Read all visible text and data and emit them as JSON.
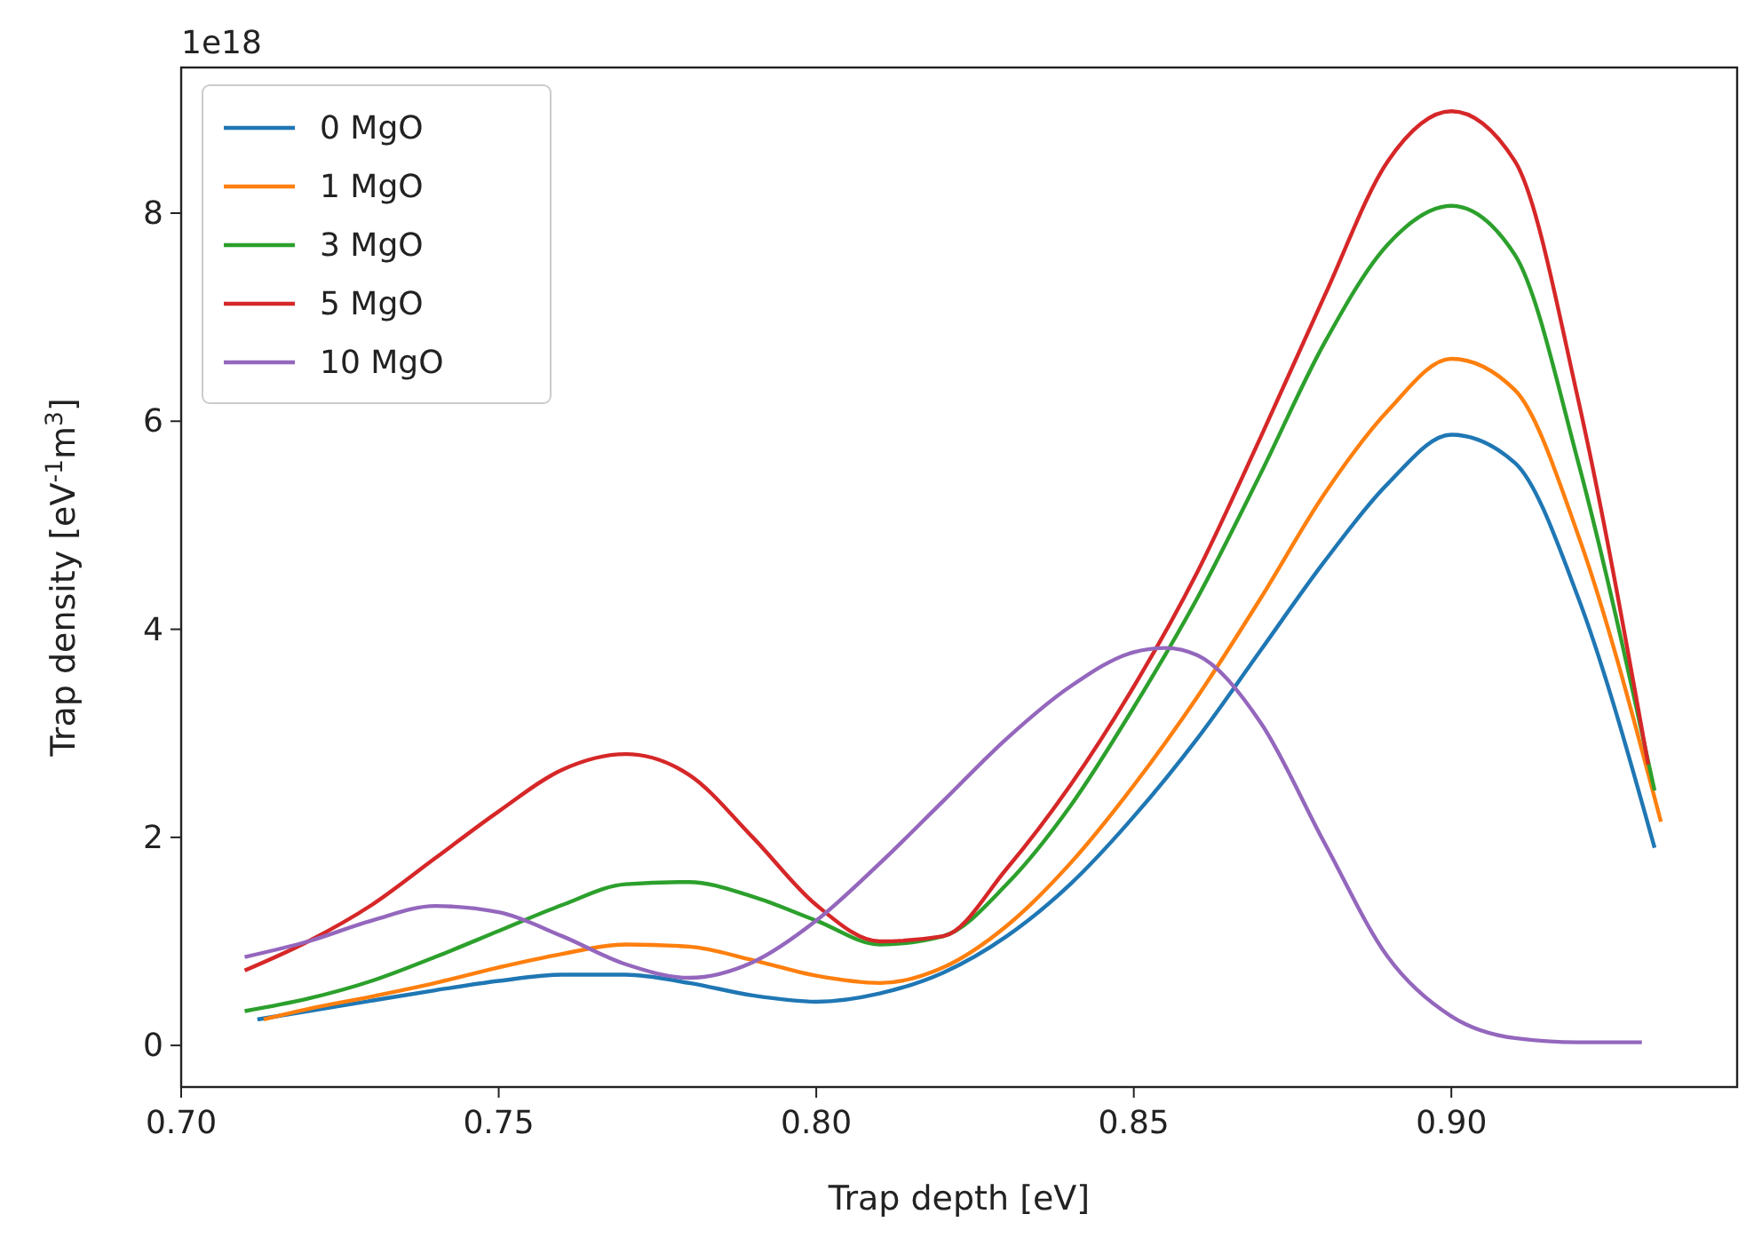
{
  "chart_data": {
    "type": "line",
    "xlabel": "Trap depth [eV]",
    "ylabel": "Trap density [eV$^{-1}$m$^{3}$]",
    "annotations": [
      "1e18"
    ],
    "xlim": [
      0.7,
      0.945
    ],
    "ylim": [
      -0.4,
      9.4
    ],
    "xticks": [
      {
        "value": 0.7,
        "label": "0.70"
      },
      0.75,
      {
        "value": 0.8,
        "label": "0.80"
      },
      0.85,
      {
        "value": 0.9,
        "label": "0.90"
      }
    ],
    "yticks": [
      0,
      2,
      4,
      6,
      8
    ],
    "grid": false,
    "legend": "top left",
    "line_style": "solid",
    "marker": "none",
    "series": [
      {
        "name": "0 MgO",
        "color": "#1f77b4",
        "x": [
          0.712,
          0.72,
          0.73,
          0.74,
          0.75,
          0.76,
          0.77,
          0.78,
          0.79,
          0.8,
          0.81,
          0.82,
          0.83,
          0.84,
          0.85,
          0.86,
          0.87,
          0.88,
          0.89,
          0.9,
          0.91,
          0.92,
          0.932
        ],
        "values": [
          0.25,
          0.33,
          0.43,
          0.53,
          0.62,
          0.68,
          0.68,
          0.6,
          0.48,
          0.42,
          0.5,
          0.7,
          1.05,
          1.55,
          2.2,
          2.95,
          3.8,
          4.65,
          5.4,
          5.87,
          5.6,
          4.3,
          1.9
        ]
      },
      {
        "name": "1 MgO",
        "color": "#ff7f0e",
        "x": [
          0.713,
          0.72,
          0.73,
          0.74,
          0.75,
          0.76,
          0.77,
          0.78,
          0.79,
          0.8,
          0.81,
          0.82,
          0.83,
          0.84,
          0.85,
          0.86,
          0.87,
          0.88,
          0.89,
          0.9,
          0.91,
          0.92,
          0.933
        ],
        "values": [
          0.25,
          0.35,
          0.47,
          0.6,
          0.75,
          0.88,
          0.97,
          0.95,
          0.82,
          0.67,
          0.6,
          0.75,
          1.15,
          1.75,
          2.5,
          3.35,
          4.3,
          5.3,
          6.1,
          6.6,
          6.3,
          4.9,
          2.15
        ]
      },
      {
        "name": "3 MgO",
        "color": "#2ca02c",
        "x": [
          0.71,
          0.72,
          0.73,
          0.74,
          0.75,
          0.76,
          0.77,
          0.78,
          0.79,
          0.8,
          0.81,
          0.82,
          0.83,
          0.84,
          0.85,
          0.86,
          0.87,
          0.88,
          0.89,
          0.9,
          0.91,
          0.92,
          0.932
        ],
        "values": [
          0.33,
          0.45,
          0.62,
          0.85,
          1.1,
          1.35,
          1.55,
          1.57,
          1.43,
          1.2,
          0.97,
          1.05,
          1.55,
          2.3,
          3.25,
          4.3,
          5.5,
          6.75,
          7.7,
          8.07,
          7.6,
          5.6,
          2.45
        ]
      },
      {
        "name": "5 MgO",
        "color": "#d62728",
        "x": [
          0.71,
          0.72,
          0.73,
          0.74,
          0.75,
          0.76,
          0.77,
          0.78,
          0.79,
          0.8,
          0.81,
          0.82,
          0.83,
          0.84,
          0.85,
          0.86,
          0.87,
          0.88,
          0.89,
          0.9,
          0.91,
          0.92,
          0.931
        ],
        "values": [
          0.72,
          1.0,
          1.35,
          1.8,
          2.25,
          2.65,
          2.8,
          2.6,
          2.0,
          1.35,
          1.0,
          1.05,
          1.7,
          2.5,
          3.45,
          4.55,
          5.85,
          7.2,
          8.5,
          8.98,
          8.5,
          6.2,
          2.7
        ]
      },
      {
        "name": "10 MgO",
        "color": "#9467bd",
        "x": [
          0.71,
          0.72,
          0.73,
          0.74,
          0.75,
          0.76,
          0.77,
          0.78,
          0.79,
          0.8,
          0.81,
          0.82,
          0.83,
          0.84,
          0.85,
          0.855,
          0.86,
          0.87,
          0.88,
          0.89,
          0.9,
          0.91,
          0.92,
          0.93
        ],
        "values": [
          0.85,
          1.0,
          1.2,
          1.34,
          1.28,
          1.05,
          0.78,
          0.65,
          0.8,
          1.2,
          1.75,
          2.35,
          2.95,
          3.45,
          3.78,
          3.82,
          3.75,
          3.1,
          1.95,
          0.85,
          0.28,
          0.07,
          0.03,
          0.03
        ]
      }
    ]
  }
}
